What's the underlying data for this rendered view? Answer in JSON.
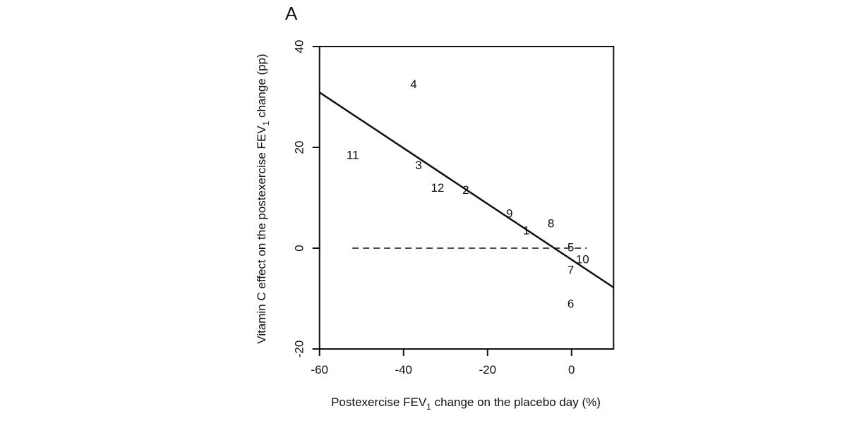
{
  "chart_data": {
    "type": "scatter",
    "panel_label": "A",
    "xlabel": "Postexercise FEV",
    "xlabel_sub": "1",
    "xlabel_suffix": " change on the placebo day (%)",
    "ylabel": "Vitamin C effect on the postexercise FEV",
    "ylabel_sub": "1",
    "ylabel_suffix": " change (pp)",
    "xlim": [
      -60,
      10
    ],
    "ylim": [
      -20,
      40
    ],
    "xticks": [
      -60,
      -40,
      -20,
      0
    ],
    "yticks": [
      -20,
      0,
      20,
      40
    ],
    "grid": false,
    "points": [
      {
        "label": "1",
        "x": -10.8,
        "y": 3.6
      },
      {
        "label": "2",
        "x": -25.2,
        "y": 11.6
      },
      {
        "label": "3",
        "x": -36.4,
        "y": 16.5
      },
      {
        "label": "4",
        "x": -37.6,
        "y": 32.6
      },
      {
        "label": "5",
        "x": -0.2,
        "y": 0.2
      },
      {
        "label": "6",
        "x": -0.2,
        "y": -11.0
      },
      {
        "label": "7",
        "x": -0.2,
        "y": -4.3
      },
      {
        "label": "8",
        "x": -4.9,
        "y": 5.0
      },
      {
        "label": "9",
        "x": -14.8,
        "y": 6.9
      },
      {
        "label": "10",
        "x": 2.6,
        "y": -2.2
      },
      {
        "label": "11",
        "x": -52.1,
        "y": 18.5
      },
      {
        "label": "12",
        "x": -31.9,
        "y": 12.0
      }
    ],
    "regression_line": {
      "x": [
        -60,
        10
      ],
      "y": [
        30.9,
        -7.8
      ]
    },
    "reference_line": {
      "x": [
        -52.2,
        3.6
      ],
      "y": [
        0,
        0
      ],
      "style": "dashed"
    }
  }
}
